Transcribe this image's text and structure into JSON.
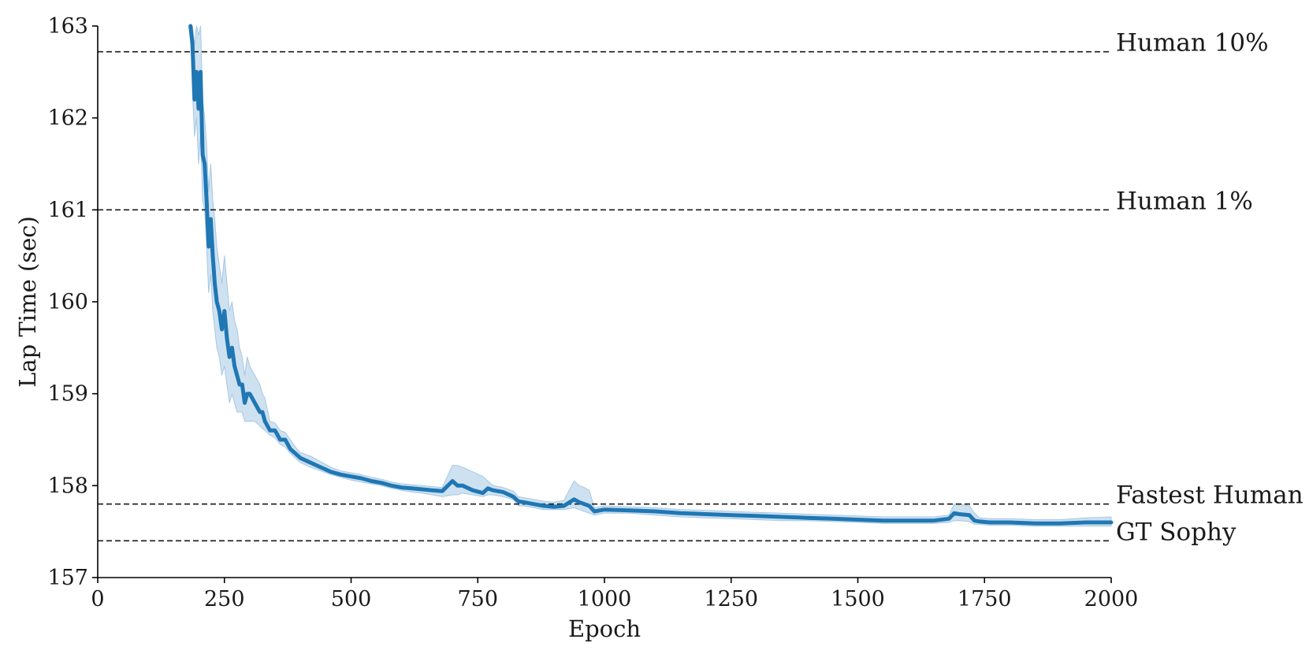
{
  "chart_data": {
    "type": "line",
    "title": "",
    "xlabel": "Epoch",
    "ylabel": "Lap Time (sec)",
    "xlim": [
      0,
      2000
    ],
    "ylim": [
      157,
      163
    ],
    "x_ticks": [
      0,
      250,
      500,
      750,
      1000,
      1250,
      1500,
      1750,
      2000
    ],
    "y_ticks": [
      157,
      158,
      159,
      160,
      161,
      162,
      163
    ],
    "grid": false,
    "legend": "none",
    "colors": {
      "series": "#1f77b4",
      "band": "#a6c8e4",
      "reference": "#1a1a1a"
    },
    "reference_lines": [
      {
        "label": "Human 10%",
        "y": 162.72
      },
      {
        "label": "Human 1%",
        "y": 161.0
      },
      {
        "label": "Fastest Human",
        "y": 157.8
      },
      {
        "label": "GT Sophy",
        "y": 157.4
      }
    ],
    "series": [
      {
        "x": [
          183,
          187,
          191,
          195,
          199,
          203,
          207,
          211,
          215,
          219,
          223,
          227,
          231,
          235,
          240,
          245,
          250,
          255,
          260,
          265,
          270,
          275,
          280,
          285,
          290,
          295,
          300,
          310,
          320,
          325,
          330,
          340,
          350,
          360,
          370,
          380,
          390,
          400,
          420,
          440,
          460,
          480,
          500,
          520,
          540,
          560,
          580,
          600,
          620,
          640,
          660,
          680,
          700,
          710,
          720,
          740,
          760,
          770,
          780,
          800,
          820,
          830,
          840,
          860,
          880,
          900,
          920,
          940,
          950,
          960,
          970,
          980,
          1000,
          1050,
          1100,
          1150,
          1200,
          1250,
          1300,
          1350,
          1400,
          1450,
          1500,
          1550,
          1600,
          1650,
          1680,
          1690,
          1700,
          1720,
          1730,
          1740,
          1760,
          1800,
          1850,
          1900,
          1950,
          2000
        ],
        "y": [
          163.0,
          162.8,
          162.2,
          162.5,
          162.1,
          162.5,
          161.6,
          161.5,
          161.1,
          160.6,
          160.9,
          160.5,
          160.2,
          160.0,
          159.9,
          159.7,
          159.9,
          159.6,
          159.4,
          159.5,
          159.3,
          159.2,
          159.1,
          159.1,
          158.9,
          159.0,
          159.0,
          158.9,
          158.8,
          158.8,
          158.7,
          158.6,
          158.6,
          158.5,
          158.5,
          158.4,
          158.35,
          158.3,
          158.25,
          158.2,
          158.15,
          158.12,
          158.1,
          158.08,
          158.05,
          158.03,
          158.0,
          157.98,
          157.97,
          157.96,
          157.95,
          157.94,
          158.05,
          158.0,
          158.0,
          157.95,
          157.92,
          157.97,
          157.95,
          157.93,
          157.88,
          157.83,
          157.82,
          157.8,
          157.78,
          157.77,
          157.78,
          157.85,
          157.82,
          157.8,
          157.78,
          157.72,
          157.74,
          157.73,
          157.72,
          157.7,
          157.69,
          157.68,
          157.67,
          157.66,
          157.65,
          157.64,
          157.63,
          157.62,
          157.62,
          157.62,
          157.64,
          157.7,
          157.69,
          157.68,
          157.62,
          157.61,
          157.6,
          157.6,
          157.59,
          157.59,
          157.6,
          157.6
        ],
        "lower": [
          163.0,
          162.3,
          161.8,
          162.0,
          161.5,
          161.8,
          161.1,
          161.0,
          160.6,
          160.1,
          160.3,
          159.9,
          159.7,
          159.5,
          159.4,
          159.2,
          159.3,
          159.1,
          158.9,
          159.0,
          158.9,
          158.8,
          158.8,
          158.8,
          158.7,
          158.7,
          158.7,
          158.7,
          158.65,
          158.62,
          158.6,
          158.55,
          158.52,
          158.45,
          158.42,
          158.35,
          158.3,
          158.25,
          158.2,
          158.16,
          158.12,
          158.09,
          158.06,
          158.04,
          158.02,
          158.0,
          157.97,
          157.95,
          157.93,
          157.92,
          157.9,
          157.88,
          157.9,
          157.9,
          157.92,
          157.9,
          157.88,
          157.9,
          157.9,
          157.88,
          157.85,
          157.78,
          157.78,
          157.76,
          157.74,
          157.74,
          157.74,
          157.76,
          157.74,
          157.72,
          157.7,
          157.68,
          157.7,
          157.7,
          157.68,
          157.66,
          157.65,
          157.64,
          157.63,
          157.62,
          157.62,
          157.61,
          157.6,
          157.59,
          157.59,
          157.59,
          157.6,
          157.62,
          157.62,
          157.61,
          157.58,
          157.58,
          157.57,
          157.57,
          157.56,
          157.56,
          157.56,
          157.56
        ],
        "upper": [
          163.0,
          163.0,
          162.8,
          163.0,
          162.9,
          163.0,
          162.2,
          162.0,
          161.7,
          161.2,
          161.5,
          161.1,
          160.9,
          160.6,
          160.4,
          160.2,
          160.5,
          160.2,
          159.9,
          160.0,
          159.8,
          159.7,
          159.5,
          159.4,
          159.2,
          159.4,
          159.3,
          159.2,
          159.1,
          159.0,
          158.95,
          158.7,
          158.68,
          158.6,
          158.58,
          158.5,
          158.42,
          158.36,
          158.32,
          158.26,
          158.2,
          158.16,
          158.14,
          158.12,
          158.09,
          158.07,
          158.04,
          158.02,
          158.01,
          158.0,
          157.99,
          157.98,
          158.22,
          158.22,
          158.2,
          158.15,
          158.1,
          158.05,
          158.0,
          157.98,
          157.94,
          157.88,
          157.87,
          157.85,
          157.83,
          157.82,
          157.84,
          158.05,
          158.0,
          157.98,
          157.95,
          157.76,
          157.78,
          157.77,
          157.76,
          157.74,
          157.73,
          157.72,
          157.71,
          157.7,
          157.69,
          157.68,
          157.67,
          157.66,
          157.66,
          157.66,
          157.68,
          157.8,
          157.8,
          157.78,
          157.7,
          157.65,
          157.64,
          157.64,
          157.63,
          157.63,
          157.65,
          157.66
        ]
      }
    ]
  }
}
